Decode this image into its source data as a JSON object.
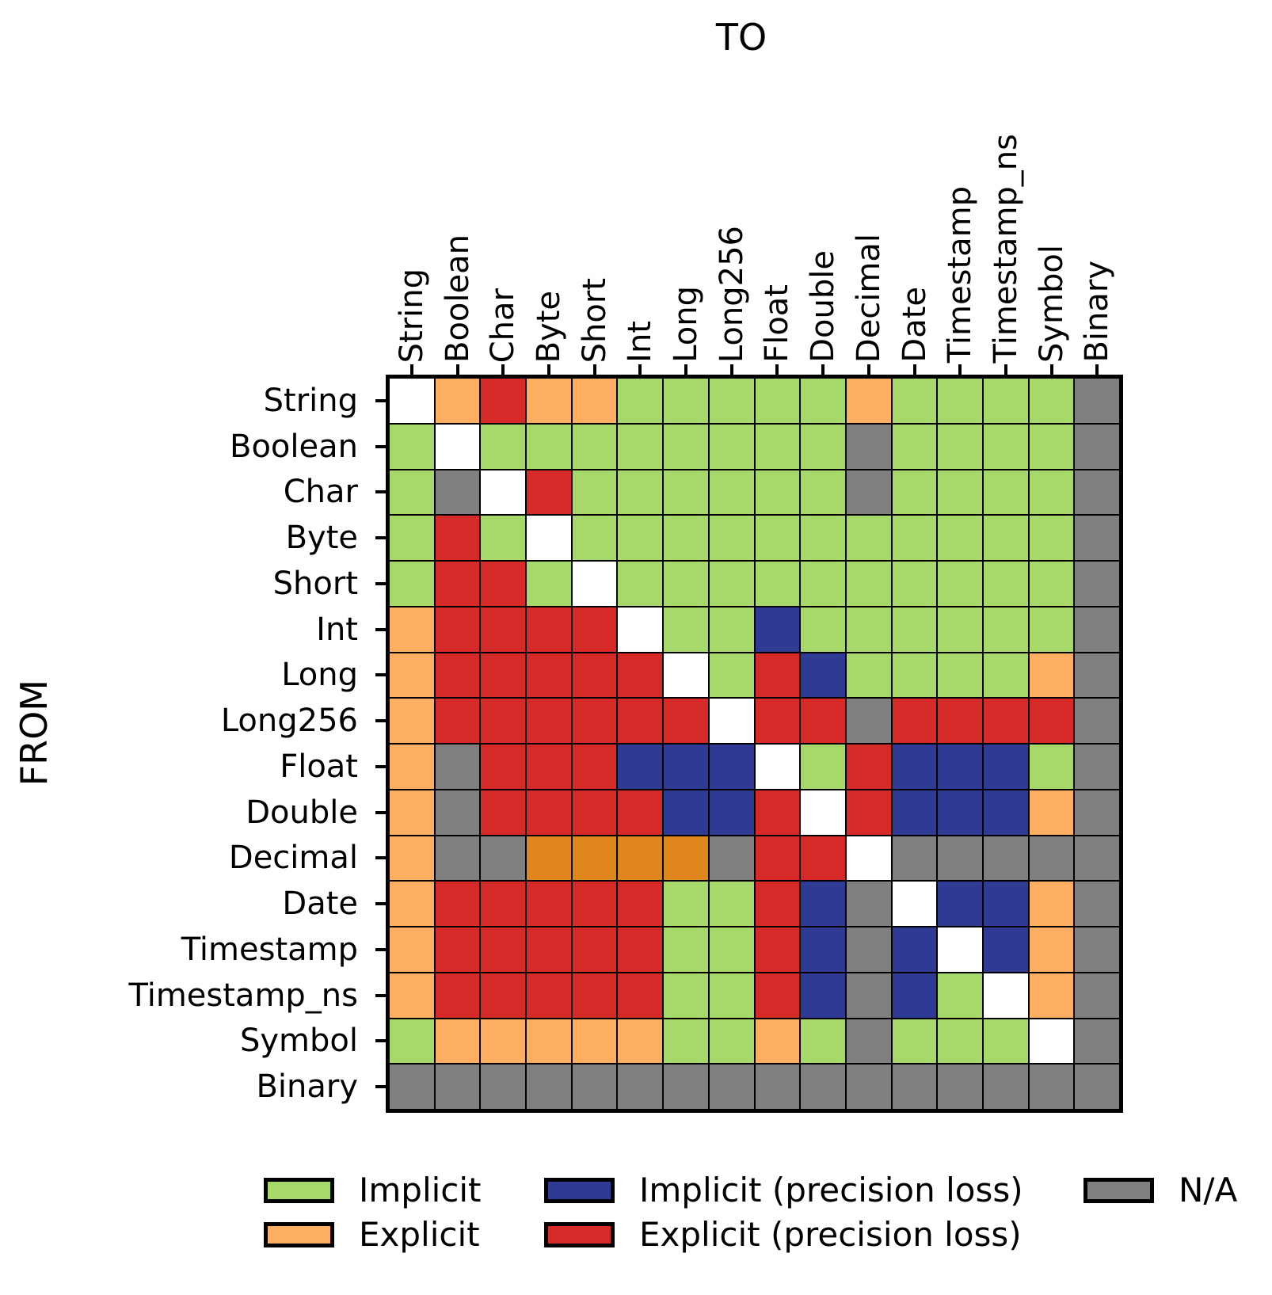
{
  "chart_data": {
    "type": "heatmap",
    "title_top": "TO",
    "ylabel": "FROM",
    "columns": [
      "String",
      "Boolean",
      "Char",
      "Byte",
      "Short",
      "Int",
      "Long",
      "Long256",
      "Float",
      "Double",
      "Decimal",
      "Date",
      "Timestamp",
      "Timestamp_ns",
      "Symbol",
      "Binary"
    ],
    "rows": [
      "String",
      "Boolean",
      "Char",
      "Byte",
      "Short",
      "Int",
      "Long",
      "Long256",
      "Float",
      "Double",
      "Decimal",
      "Date",
      "Timestamp",
      "Timestamp_ns",
      "Symbol",
      "Binary"
    ],
    "color_map": {
      "I": "#A6D96A",
      "E": "#FDAE61",
      "IP": "#2F3A95",
      "EP": "#D62A28",
      "ED": "#DF861D",
      "NA": "#7F7F7F",
      "S": "#FFFFFF"
    },
    "code_meaning": {
      "I": "Implicit",
      "E": "Explicit",
      "IP": "Implicit (precision loss)",
      "EP": "Explicit (precision loss)",
      "ED": "Explicit (dark orange shade)",
      "NA": "N/A",
      "S": "same type (diagonal, blank)"
    },
    "legend": [
      {
        "label": "Implicit",
        "code": "I"
      },
      {
        "label": "Explicit",
        "code": "E"
      },
      {
        "label": "Implicit (precision loss)",
        "code": "IP"
      },
      {
        "label": "Explicit (precision loss)",
        "code": "EP"
      },
      {
        "label": "N/A",
        "code": "NA"
      }
    ],
    "matrix": [
      [
        "S",
        "E",
        "EP",
        "E",
        "E",
        "I",
        "I",
        "I",
        "I",
        "I",
        "E",
        "I",
        "I",
        "I",
        "I",
        "NA"
      ],
      [
        "I",
        "S",
        "I",
        "I",
        "I",
        "I",
        "I",
        "I",
        "I",
        "I",
        "NA",
        "I",
        "I",
        "I",
        "I",
        "NA"
      ],
      [
        "I",
        "NA",
        "S",
        "EP",
        "I",
        "I",
        "I",
        "I",
        "I",
        "I",
        "NA",
        "I",
        "I",
        "I",
        "I",
        "NA"
      ],
      [
        "I",
        "EP",
        "I",
        "S",
        "I",
        "I",
        "I",
        "I",
        "I",
        "I",
        "I",
        "I",
        "I",
        "I",
        "I",
        "NA"
      ],
      [
        "I",
        "EP",
        "EP",
        "I",
        "S",
        "I",
        "I",
        "I",
        "I",
        "I",
        "I",
        "I",
        "I",
        "I",
        "I",
        "NA"
      ],
      [
        "E",
        "EP",
        "EP",
        "EP",
        "EP",
        "S",
        "I",
        "I",
        "IP",
        "I",
        "I",
        "I",
        "I",
        "I",
        "I",
        "NA"
      ],
      [
        "E",
        "EP",
        "EP",
        "EP",
        "EP",
        "EP",
        "S",
        "I",
        "EP",
        "IP",
        "I",
        "I",
        "I",
        "I",
        "E",
        "NA"
      ],
      [
        "E",
        "EP",
        "EP",
        "EP",
        "EP",
        "EP",
        "EP",
        "S",
        "EP",
        "EP",
        "NA",
        "EP",
        "EP",
        "EP",
        "EP",
        "NA"
      ],
      [
        "E",
        "NA",
        "EP",
        "EP",
        "EP",
        "IP",
        "IP",
        "IP",
        "S",
        "I",
        "EP",
        "IP",
        "IP",
        "IP",
        "I",
        "NA"
      ],
      [
        "E",
        "NA",
        "EP",
        "EP",
        "EP",
        "EP",
        "IP",
        "IP",
        "EP",
        "S",
        "EP",
        "IP",
        "IP",
        "IP",
        "E",
        "NA"
      ],
      [
        "E",
        "NA",
        "NA",
        "ED",
        "ED",
        "ED",
        "ED",
        "NA",
        "EP",
        "EP",
        "S",
        "NA",
        "NA",
        "NA",
        "NA",
        "NA"
      ],
      [
        "E",
        "EP",
        "EP",
        "EP",
        "EP",
        "EP",
        "I",
        "I",
        "EP",
        "IP",
        "NA",
        "S",
        "IP",
        "IP",
        "E",
        "NA"
      ],
      [
        "E",
        "EP",
        "EP",
        "EP",
        "EP",
        "EP",
        "I",
        "I",
        "EP",
        "IP",
        "NA",
        "IP",
        "S",
        "IP",
        "E",
        "NA"
      ],
      [
        "E",
        "EP",
        "EP",
        "EP",
        "EP",
        "EP",
        "I",
        "I",
        "EP",
        "IP",
        "NA",
        "IP",
        "I",
        "S",
        "E",
        "NA"
      ],
      [
        "I",
        "E",
        "E",
        "E",
        "E",
        "E",
        "I",
        "I",
        "E",
        "I",
        "NA",
        "I",
        "I",
        "I",
        "S",
        "NA"
      ],
      [
        "NA",
        "NA",
        "NA",
        "NA",
        "NA",
        "NA",
        "NA",
        "NA",
        "NA",
        "NA",
        "NA",
        "NA",
        "NA",
        "NA",
        "NA",
        "NA"
      ]
    ]
  }
}
